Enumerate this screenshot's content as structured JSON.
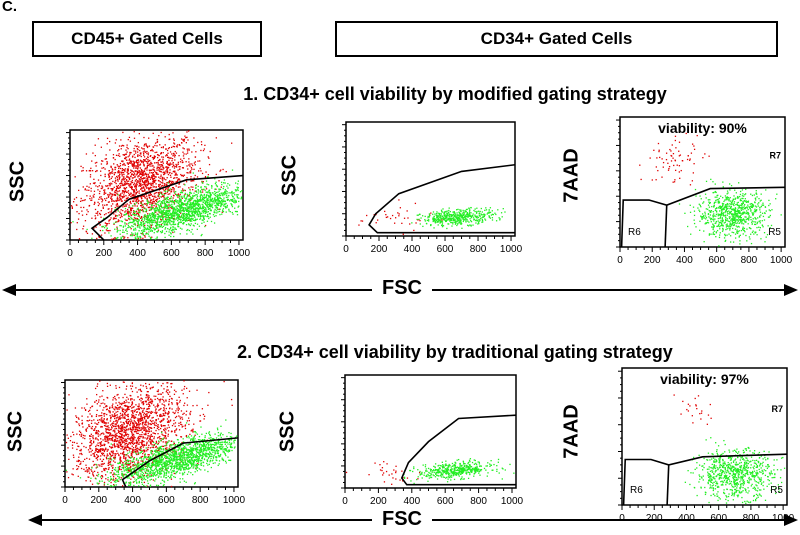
{
  "panel_letter": "C.",
  "headers": {
    "cd45": "CD45+ Gated Cells",
    "cd34": "CD34+ Gated Cells"
  },
  "rows": [
    {
      "title": "1. CD34+ cell viability by modified gating strategy"
    },
    {
      "title": "2. CD34+ cell viability by traditional gating strategy"
    }
  ],
  "axis_labels": {
    "ssc": "SSC",
    "aad": "7AAD",
    "fsc": "FSC"
  },
  "colors": {
    "dead": "#e00000",
    "live": "#22ee22",
    "line": "#000000"
  },
  "chart_data": [
    {
      "type": "scatter",
      "id": "r1p1",
      "xlabel": "FSC",
      "ylabel": "SSC",
      "xlim": [
        0,
        1024
      ],
      "ylim": [
        0,
        1024
      ],
      "xticks": [
        0,
        200,
        400,
        600,
        800,
        1000
      ],
      "clusters": [
        {
          "color": "dead",
          "n": 1800,
          "cx": 420,
          "cy": 520,
          "sx": 170,
          "sy": 210,
          "slope": 0.4
        },
        {
          "color": "live",
          "n": 1600,
          "cx": 660,
          "cy": 270,
          "sx": 190,
          "sy": 90,
          "slope": 0.45
        }
      ],
      "gate": [
        [
          200,
          0
        ],
        [
          130,
          110
        ],
        [
          220,
          210
        ],
        [
          350,
          380
        ],
        [
          690,
          560
        ],
        [
          1024,
          600
        ]
      ],
      "labels": []
    },
    {
      "type": "scatter",
      "id": "r1p2",
      "xlabel": "FSC",
      "ylabel": "SSC",
      "xlim": [
        0,
        1024
      ],
      "ylim": [
        0,
        1024
      ],
      "xticks": [
        0,
        200,
        400,
        600,
        800,
        1000
      ],
      "clusters": [
        {
          "color": "dead",
          "n": 35,
          "cx": 300,
          "cy": 160,
          "sx": 110,
          "sy": 60,
          "slope": 0
        },
        {
          "color": "live",
          "n": 450,
          "cx": 680,
          "cy": 170,
          "sx": 110,
          "sy": 35,
          "slope": 0.1
        }
      ],
      "gate": [
        [
          1024,
          30
        ],
        [
          190,
          30
        ],
        [
          140,
          100
        ],
        [
          180,
          200
        ],
        [
          320,
          380
        ],
        [
          700,
          580
        ],
        [
          1024,
          640
        ]
      ],
      "labels": []
    },
    {
      "type": "scatter",
      "id": "r1p3",
      "xlabel": "FSC",
      "ylabel": "7AAD",
      "xlim": [
        0,
        1024
      ],
      "ylim": [
        0,
        1024
      ],
      "xticks": [
        0,
        200,
        400,
        600,
        800,
        1000
      ],
      "clusters": [
        {
          "color": "dead",
          "n": 70,
          "cx": 340,
          "cy": 680,
          "sx": 90,
          "sy": 100,
          "slope": 0.3
        },
        {
          "color": "live",
          "n": 750,
          "cx": 700,
          "cy": 260,
          "sx": 110,
          "sy": 90,
          "slope": 0
        }
      ],
      "gate": [
        [
          10,
          0
        ],
        [
          20,
          370
        ],
        [
          180,
          370
        ],
        [
          290,
          330
        ],
        [
          560,
          460
        ],
        [
          1024,
          470
        ]
      ],
      "gate2": [
        [
          290,
          330
        ],
        [
          280,
          0
        ]
      ],
      "labels": [
        "viability: 90%",
        "R7",
        "R6",
        "R5"
      ]
    },
    {
      "type": "scatter",
      "id": "r2p1",
      "xlabel": "FSC",
      "ylabel": "SSC",
      "xlim": [
        0,
        1024
      ],
      "ylim": [
        0,
        1024
      ],
      "xticks": [
        0,
        200,
        400,
        600,
        800,
        1000
      ],
      "clusters": [
        {
          "color": "dead",
          "n": 1900,
          "cx": 380,
          "cy": 520,
          "sx": 170,
          "sy": 220,
          "slope": 0.4
        },
        {
          "color": "live",
          "n": 1600,
          "cx": 650,
          "cy": 260,
          "sx": 190,
          "sy": 90,
          "slope": 0.45
        }
      ],
      "gate": [
        [
          360,
          0
        ],
        [
          340,
          70
        ],
        [
          500,
          250
        ],
        [
          700,
          420
        ],
        [
          1024,
          470
        ]
      ],
      "labels": []
    },
    {
      "type": "scatter",
      "id": "r2p2",
      "xlabel": "FSC",
      "ylabel": "SSC",
      "xlim": [
        0,
        1024
      ],
      "ylim": [
        0,
        1024
      ],
      "xticks": [
        0,
        200,
        400,
        600,
        800,
        1000
      ],
      "clusters": [
        {
          "color": "dead",
          "n": 30,
          "cx": 260,
          "cy": 160,
          "sx": 100,
          "sy": 60,
          "slope": 0
        },
        {
          "color": "live",
          "n": 450,
          "cx": 660,
          "cy": 160,
          "sx": 110,
          "sy": 35,
          "slope": 0.1
        }
      ],
      "gate": [
        [
          1024,
          30
        ],
        [
          370,
          30
        ],
        [
          340,
          90
        ],
        [
          380,
          230
        ],
        [
          500,
          420
        ],
        [
          680,
          630
        ],
        [
          1024,
          660
        ]
      ],
      "labels": []
    },
    {
      "type": "scatter",
      "id": "r2p3",
      "xlabel": "FSC",
      "ylabel": "7AAD",
      "xlim": [
        0,
        1024
      ],
      "ylim": [
        0,
        1024
      ],
      "xticks": [
        0,
        200,
        400,
        600,
        800,
        1000
      ],
      "clusters": [
        {
          "color": "dead",
          "n": 22,
          "cx": 450,
          "cy": 700,
          "sx": 60,
          "sy": 90,
          "slope": 0
        },
        {
          "color": "live",
          "n": 750,
          "cx": 700,
          "cy": 230,
          "sx": 120,
          "sy": 90,
          "slope": 0
        }
      ],
      "gate": [
        [
          10,
          0
        ],
        [
          20,
          340
        ],
        [
          180,
          340
        ],
        [
          290,
          300
        ],
        [
          500,
          360
        ],
        [
          1024,
          380
        ]
      ],
      "gate2": [
        [
          290,
          300
        ],
        [
          280,
          0
        ]
      ],
      "labels": [
        "viability: 97%",
        "R7",
        "R6",
        "R5"
      ]
    }
  ]
}
